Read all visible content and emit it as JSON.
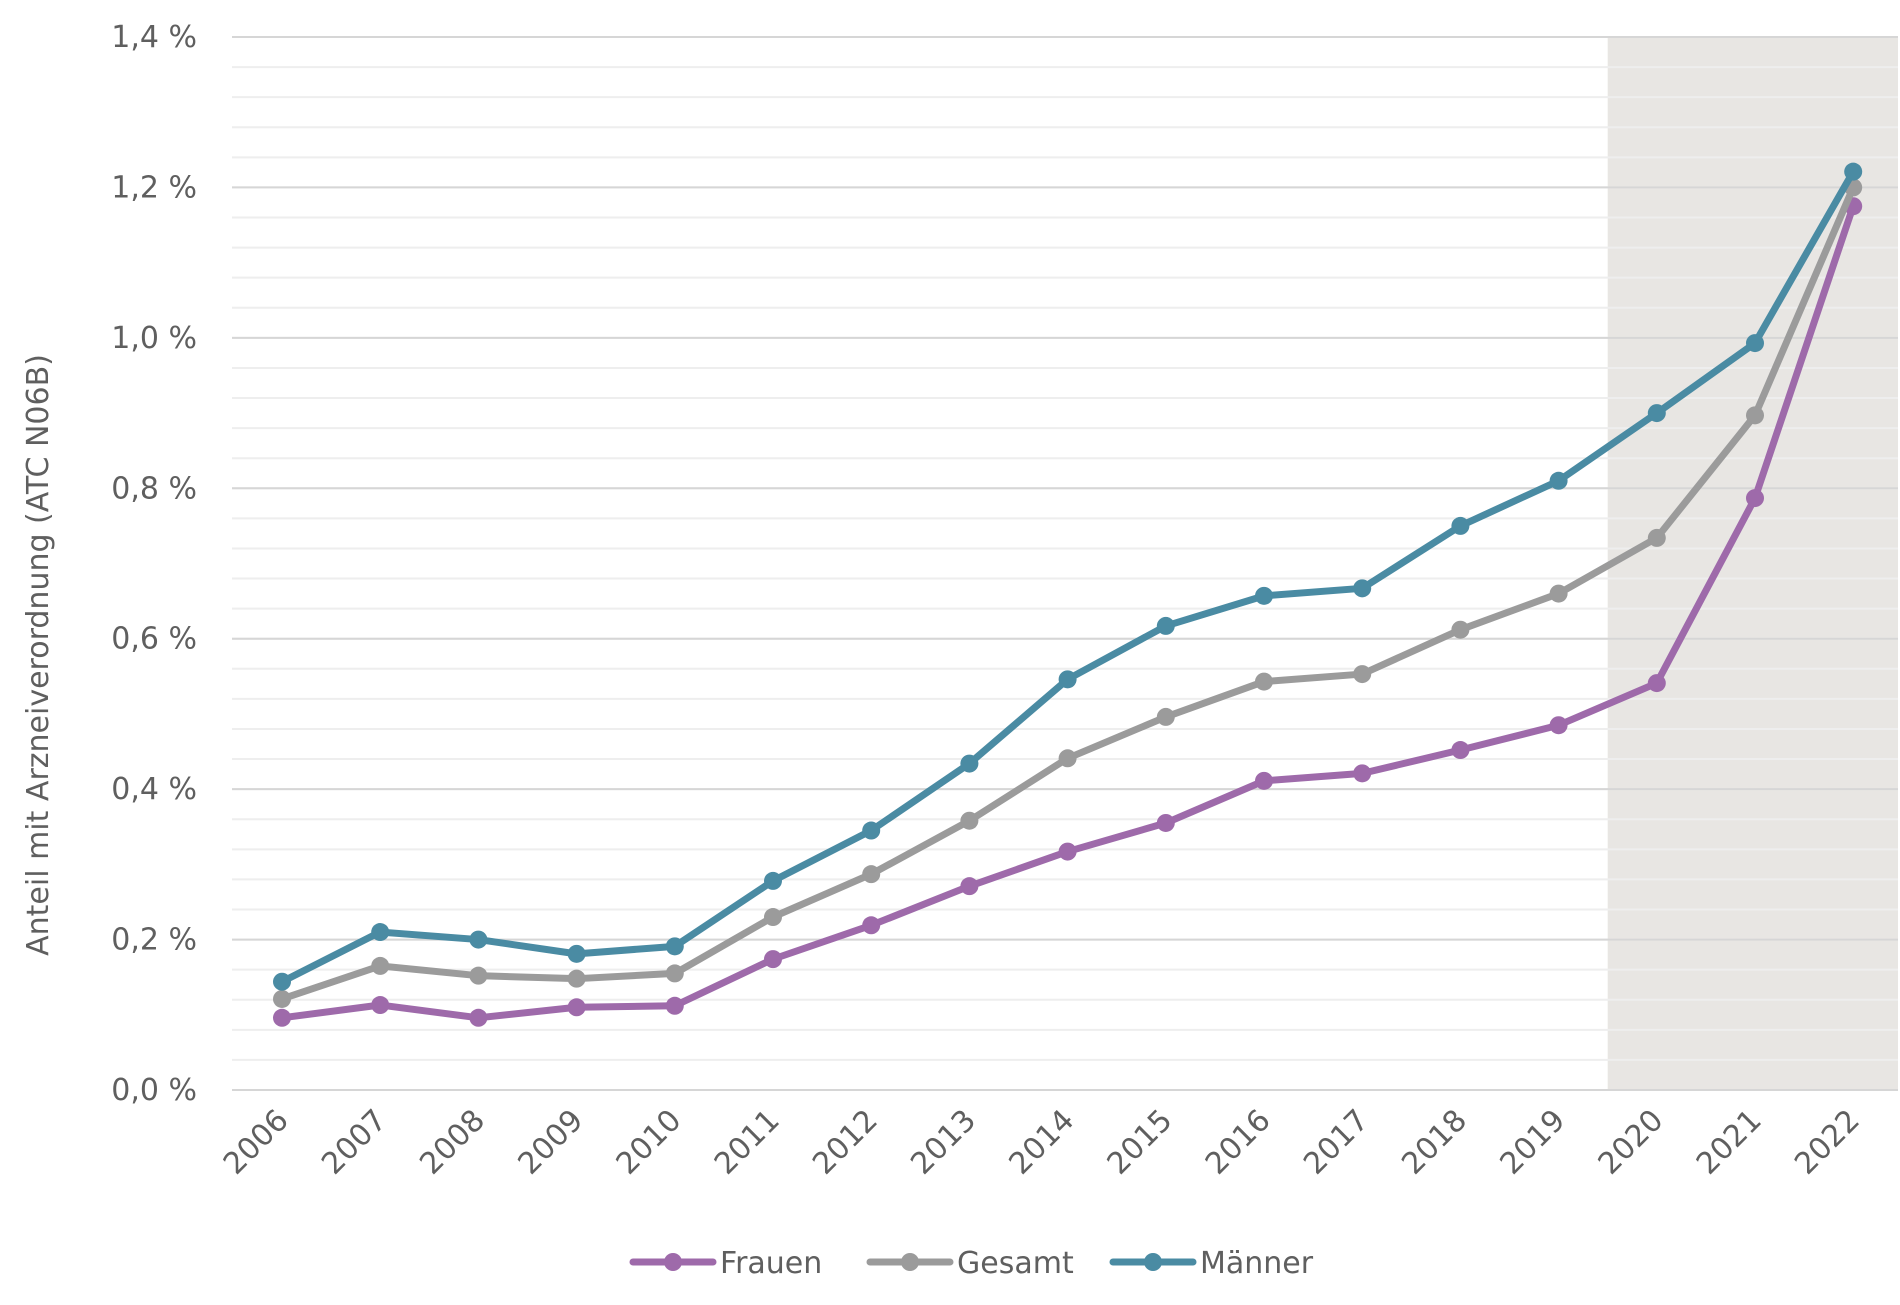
{
  "chart_data": {
    "type": "line",
    "title": "",
    "xlabel": "",
    "ylabel": "Anteil mit Arzneiverordnung (ATC N06B)",
    "categories": [
      "2006",
      "2007",
      "2008",
      "2009",
      "2010",
      "2011",
      "2012",
      "2013",
      "2014",
      "2015",
      "2016",
      "2017",
      "2018",
      "2019",
      "2020",
      "2021",
      "2022"
    ],
    "ylim": [
      0,
      1.4
    ],
    "yticks": [
      0,
      0.2,
      0.4,
      0.6,
      0.8,
      1.0,
      1.2,
      1.4
    ],
    "ytick_labels": [
      "0,0 %",
      "0,2 %",
      "0,4 %",
      "0,6 %",
      "0,8 %",
      "1,0 %",
      "1,2 %",
      "1,4 %"
    ],
    "minor_gridline_step": 0.04,
    "shaded_region": {
      "from": "2020",
      "to": "2022",
      "color": "#e8e6e3"
    },
    "legend_position": "bottom-center",
    "series": [
      {
        "name": "Frauen",
        "color": "#9e6aaa",
        "values": [
          0.096,
          0.113,
          0.096,
          0.11,
          0.112,
          0.174,
          0.219,
          0.271,
          0.317,
          0.355,
          0.411,
          0.421,
          0.452,
          0.485,
          0.541,
          0.787,
          1.175
        ]
      },
      {
        "name": "Gesamt",
        "color": "#9b9b9b",
        "values": [
          0.121,
          0.165,
          0.152,
          0.148,
          0.155,
          0.23,
          0.287,
          0.358,
          0.441,
          0.496,
          0.543,
          0.553,
          0.612,
          0.66,
          0.734,
          0.897,
          1.2
        ]
      },
      {
        "name": "Männer",
        "color": "#4a8ba3",
        "values": [
          0.144,
          0.21,
          0.2,
          0.181,
          0.191,
          0.278,
          0.345,
          0.434,
          0.546,
          0.617,
          0.657,
          0.667,
          0.75,
          0.81,
          0.9,
          0.993,
          1.221
        ]
      }
    ]
  }
}
